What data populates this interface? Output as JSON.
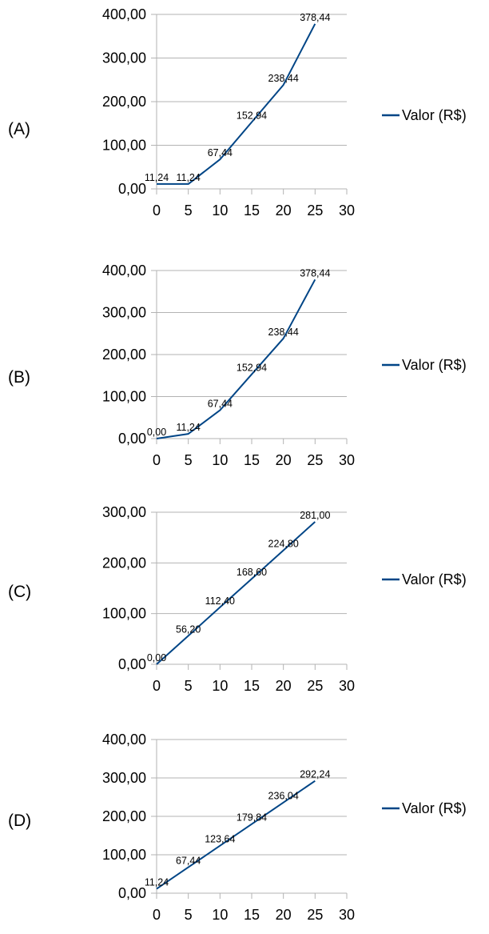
{
  "colors": {
    "series": "#004586",
    "grid": "#b3b3b3",
    "text": "#000000"
  },
  "chart_data": [
    {
      "type": "line",
      "option_label": "(A)",
      "legend_placement": "right",
      "grid": true,
      "xlim": [
        0,
        30
      ],
      "ylim": [
        0,
        400
      ],
      "x_ticks": [
        0,
        5,
        10,
        15,
        20,
        25,
        30
      ],
      "x_tick_labels": [
        "0",
        "5",
        "10",
        "15",
        "20",
        "25",
        "30"
      ],
      "y_ticks": [
        0,
        100,
        200,
        300,
        400
      ],
      "y_tick_labels": [
        "0,00",
        "100,00",
        "200,00",
        "300,00",
        "400,00"
      ],
      "series": [
        {
          "name": "Valor (R$)",
          "x": [
            0,
            5,
            10,
            15,
            20,
            25
          ],
          "values": [
            11.24,
            11.24,
            67.44,
            152.94,
            238.44,
            378.44
          ],
          "labels": [
            "11,24",
            "11,24",
            "67,44",
            "152,94",
            "238,44",
            "378,44"
          ]
        }
      ]
    },
    {
      "type": "line",
      "option_label": "(B)",
      "legend_placement": "right",
      "grid": true,
      "xlim": [
        0,
        30
      ],
      "ylim": [
        0,
        400
      ],
      "x_ticks": [
        0,
        5,
        10,
        15,
        20,
        25,
        30
      ],
      "x_tick_labels": [
        "0",
        "5",
        "10",
        "15",
        "20",
        "25",
        "30"
      ],
      "y_ticks": [
        0,
        100,
        200,
        300,
        400
      ],
      "y_tick_labels": [
        "0,00",
        "100,00",
        "200,00",
        "300,00",
        "400,00"
      ],
      "series": [
        {
          "name": "Valor (R$)",
          "x": [
            0,
            5,
            10,
            15,
            20,
            25
          ],
          "values": [
            0,
            11.24,
            67.44,
            152.94,
            238.44,
            378.44
          ],
          "labels": [
            "0,00",
            "11,24",
            "67,44",
            "152,94",
            "238,44",
            "378,44"
          ]
        }
      ]
    },
    {
      "type": "line",
      "option_label": "(C)",
      "legend_placement": "right",
      "grid": true,
      "xlim": [
        0,
        30
      ],
      "ylim": [
        0,
        300
      ],
      "x_ticks": [
        0,
        5,
        10,
        15,
        20,
        25,
        30
      ],
      "x_tick_labels": [
        "0",
        "5",
        "10",
        "15",
        "20",
        "25",
        "30"
      ],
      "y_ticks": [
        0,
        100,
        200,
        300
      ],
      "y_tick_labels": [
        "0,00",
        "100,00",
        "200,00",
        "300,00"
      ],
      "series": [
        {
          "name": "Valor (R$)",
          "x": [
            0,
            5,
            10,
            15,
            20,
            25
          ],
          "values": [
            0,
            56.2,
            112.4,
            168.6,
            224.8,
            281.0
          ],
          "labels": [
            "0,00",
            "56,20",
            "112,40",
            "168,60",
            "224,80",
            "281,00"
          ]
        }
      ]
    },
    {
      "type": "line",
      "option_label": "(D)",
      "legend_placement": "right",
      "grid": true,
      "xlim": [
        0,
        30
      ],
      "ylim": [
        0,
        400
      ],
      "x_ticks": [
        0,
        5,
        10,
        15,
        20,
        25,
        30
      ],
      "x_tick_labels": [
        "0",
        "5",
        "10",
        "15",
        "20",
        "25",
        "30"
      ],
      "y_ticks": [
        0,
        100,
        200,
        300,
        400
      ],
      "y_tick_labels": [
        "0,00",
        "100,00",
        "200,00",
        "300,00",
        "400,00"
      ],
      "series": [
        {
          "name": "Valor (R$)",
          "x": [
            0,
            5,
            10,
            15,
            20,
            25
          ],
          "values": [
            11.24,
            67.44,
            123.64,
            179.84,
            236.04,
            292.24
          ],
          "labels": [
            "11,24",
            "67,44",
            "123,64",
            "179,84",
            "236,04",
            "292,24"
          ]
        }
      ]
    }
  ]
}
